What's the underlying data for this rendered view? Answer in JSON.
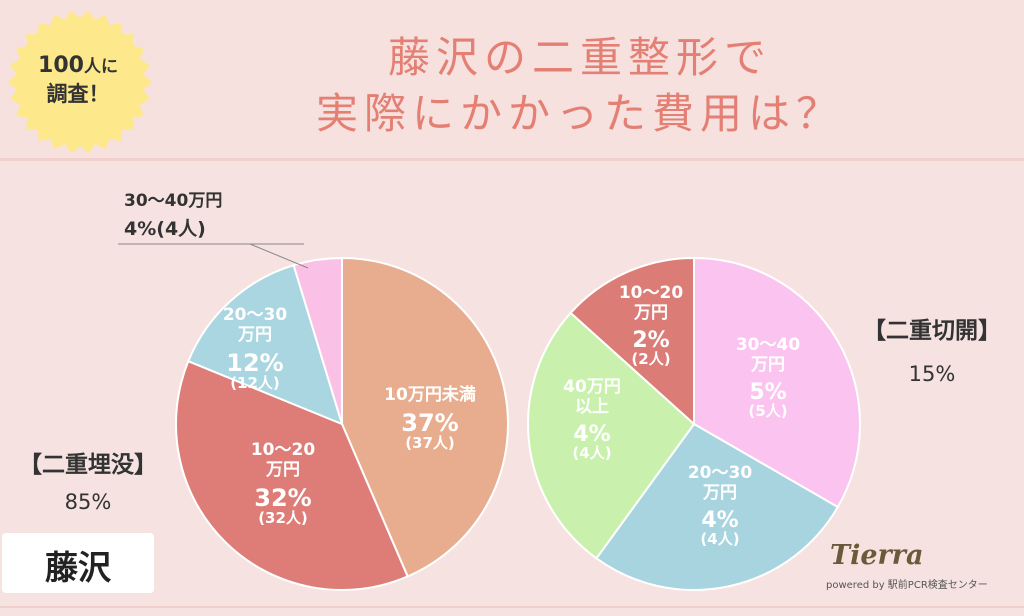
{
  "badge": {
    "line1": "100",
    "line1_small": "人に",
    "line2": "調査！"
  },
  "title": {
    "line1": "藤沢の二重整形で",
    "line2": "実際にかかった費用は？"
  },
  "location": "藤沢",
  "logo": {
    "name": "Tierra",
    "sub": "powered by 駅前PCR検査センター"
  },
  "colors": {
    "title": "#e47f74",
    "background": "#f6e3e1"
  },
  "chart_data": [
    {
      "type": "pie",
      "group_label": "【二重埋没】",
      "group_percent": "85%",
      "slices": [
        {
          "label_lines": [
            "10万円未満"
          ],
          "percent": 37,
          "percent_text": "37%",
          "count_text": "(37人)",
          "color": "#e8ad8e"
        },
        {
          "label_lines": [
            "10〜20",
            "万円"
          ],
          "percent": 32,
          "percent_text": "32%",
          "count_text": "(32人)",
          "color": "#de7d77"
        },
        {
          "label_lines": [
            "20〜30",
            "万円"
          ],
          "percent": 12,
          "percent_text": "12%",
          "count_text": "(12人)",
          "color": "#a9d6e1"
        },
        {
          "label_lines": [
            "30〜40万円"
          ],
          "percent": 4,
          "percent_text": "4%",
          "count_text": "(4人)",
          "color": "#fbc0e6",
          "callout": true
        }
      ]
    },
    {
      "type": "pie",
      "group_label": "【二重切開】",
      "group_percent": "15%",
      "slices": [
        {
          "label_lines": [
            "30〜40",
            "万円"
          ],
          "percent": 5,
          "percent_text": "5%",
          "count_text": "(5人)",
          "color": "#fbc3ef"
        },
        {
          "label_lines": [
            "20〜30",
            "万円"
          ],
          "percent": 4,
          "percent_text": "4%",
          "count_text": "(4人)",
          "color": "#a8d4e0"
        },
        {
          "label_lines": [
            "40万円",
            "以上"
          ],
          "percent": 4,
          "percent_text": "4%",
          "count_text": "(4人)",
          "color": "#c9f1ad"
        },
        {
          "label_lines": [
            "10〜20",
            "万円"
          ],
          "percent": 2,
          "percent_text": "2%",
          "count_text": "(2人)",
          "color": "#dc7c76"
        }
      ]
    }
  ]
}
